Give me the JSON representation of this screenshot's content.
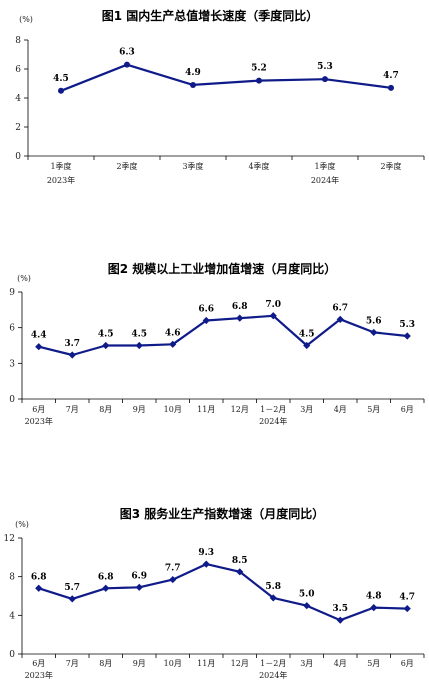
{
  "chart_data": [
    {
      "type": "line",
      "title": "图1   国内生产总值增长速度（季度同比）",
      "unit": "(%)",
      "ylim": [
        0,
        8
      ],
      "yticks": [
        0,
        2,
        4,
        6,
        8
      ],
      "categories": [
        [
          "1季度",
          "2023年"
        ],
        [
          "2季度",
          ""
        ],
        [
          "3季度",
          ""
        ],
        [
          "4季度",
          ""
        ],
        [
          "1季度",
          "2024年"
        ],
        [
          "2季度",
          ""
        ]
      ],
      "values": [
        4.5,
        6.3,
        4.9,
        5.2,
        5.3,
        4.7
      ],
      "labels": [
        "4.5",
        "6.3",
        "4.9",
        "5.2",
        "5.3",
        "4.7"
      ],
      "marker": "circle",
      "color": "#101b8a"
    },
    {
      "type": "line",
      "title": "图2   规模以上工业增加值增速（月度同比）",
      "unit": "(%)",
      "ylim": [
        0,
        9
      ],
      "yticks": [
        0,
        3,
        6,
        9
      ],
      "categories": [
        [
          "6月",
          "2023年"
        ],
        [
          "7月",
          ""
        ],
        [
          "8月",
          ""
        ],
        [
          "9月",
          ""
        ],
        [
          "10月",
          ""
        ],
        [
          "11月",
          ""
        ],
        [
          "12月",
          ""
        ],
        [
          "1－2月",
          "2024年"
        ],
        [
          "3月",
          ""
        ],
        [
          "4月",
          ""
        ],
        [
          "5月",
          ""
        ],
        [
          "6月",
          ""
        ]
      ],
      "values": [
        4.4,
        3.7,
        4.5,
        4.5,
        4.6,
        6.6,
        6.8,
        7.0,
        4.5,
        6.7,
        5.6,
        5.3
      ],
      "labels": [
        "4.4",
        "3.7",
        "4.5",
        "4.5",
        "4.6",
        "6.6",
        "6.8",
        "7.0",
        "4.5",
        "6.7",
        "5.6",
        "5.3"
      ],
      "marker": "diamond",
      "color": "#101b8a"
    },
    {
      "type": "line",
      "title": "图3   服务业生产指数增速（月度同比）",
      "unit": "(%)",
      "ylim": [
        0,
        12
      ],
      "yticks": [
        0,
        4,
        8,
        12
      ],
      "categories": [
        [
          "6月",
          "2023年"
        ],
        [
          "7月",
          ""
        ],
        [
          "8月",
          ""
        ],
        [
          "9月",
          ""
        ],
        [
          "10月",
          ""
        ],
        [
          "11月",
          ""
        ],
        [
          "12月",
          ""
        ],
        [
          "1－2月",
          "2024年"
        ],
        [
          "3月",
          ""
        ],
        [
          "4月",
          ""
        ],
        [
          "5月",
          ""
        ],
        [
          "6月",
          ""
        ]
      ],
      "values": [
        6.8,
        5.7,
        6.8,
        6.9,
        7.7,
        9.3,
        8.5,
        5.8,
        5.0,
        3.5,
        4.8,
        4.7
      ],
      "labels": [
        "6.8",
        "5.7",
        "6.8",
        "6.9",
        "7.7",
        "9.3",
        "8.5",
        "5.8",
        "5.0",
        "3.5",
        "4.8",
        "4.7"
      ],
      "marker": "diamond",
      "color": "#101b8a"
    }
  ]
}
